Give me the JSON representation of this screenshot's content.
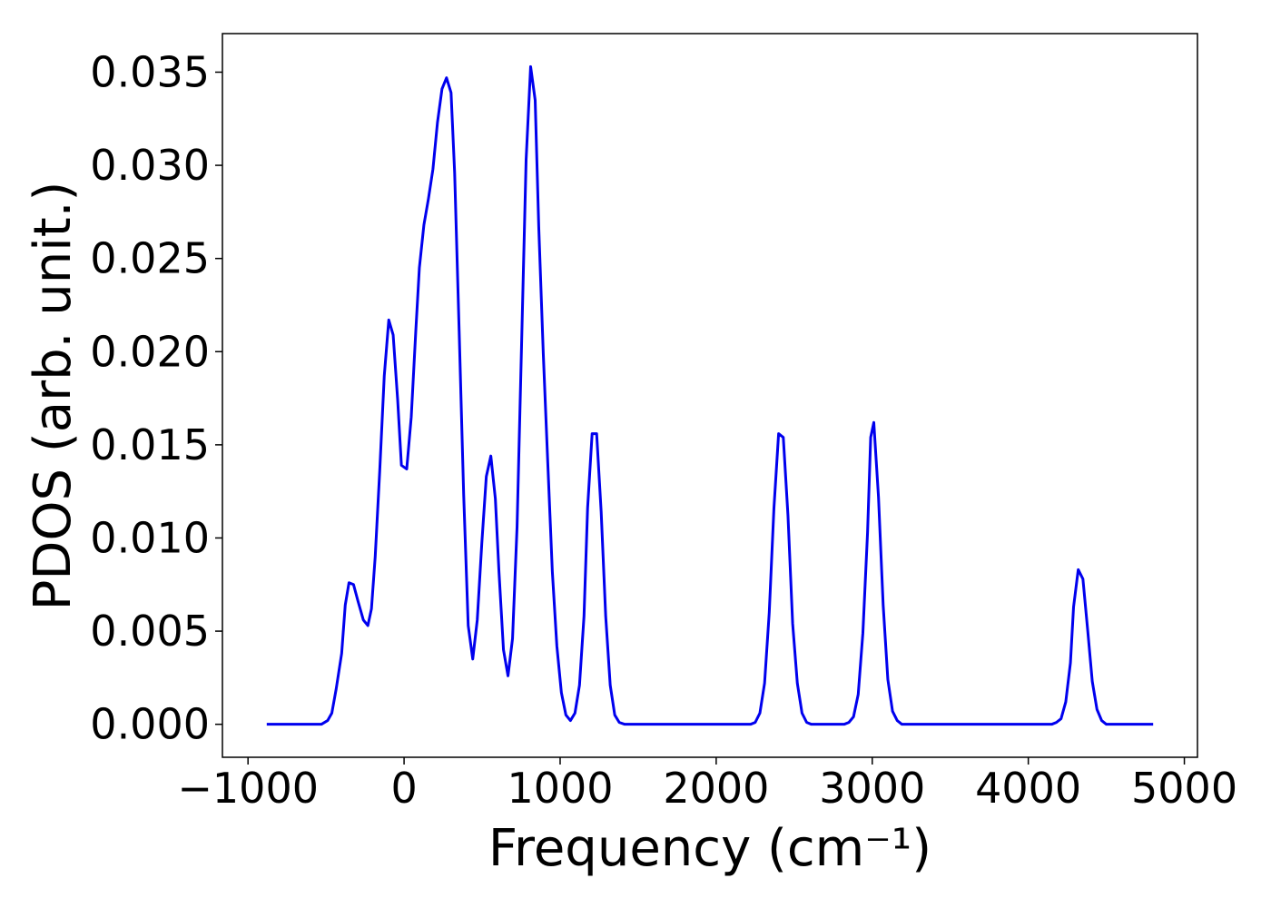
{
  "chart_data": {
    "type": "line",
    "xlabel": "Frequency (cm⁻¹)",
    "ylabel": "PDOS (arb. unit.)",
    "xlim": [
      -1164,
      5084
    ],
    "ylim": [
      -0.00177,
      0.03707
    ],
    "xticks": [
      {
        "value": -1000,
        "label": "−1000"
      },
      0,
      1000,
      2000,
      3000,
      4000,
      5000
    ],
    "yticks": [
      {
        "value": 0,
        "label": "0.000"
      },
      {
        "value": 0.005,
        "label": "0.005"
      },
      {
        "value": 0.01,
        "label": "0.010"
      },
      {
        "value": 0.015,
        "label": "0.015"
      },
      {
        "value": 0.02,
        "label": "0.020"
      },
      {
        "value": 0.025,
        "label": "0.025"
      },
      {
        "value": 0.03,
        "label": "0.030"
      },
      {
        "value": 0.035,
        "label": "0.035"
      }
    ],
    "grid": false,
    "series": [
      {
        "color": "#0000ee",
        "x": [
          -880,
          -530,
          -490,
          -463,
          -435,
          -400,
          -377,
          -353,
          -324,
          -295,
          -261,
          -232,
          -209,
          -185,
          -156,
          -127,
          -98,
          -70,
          -41,
          -17,
          17,
          46,
          75,
          98,
          127,
          156,
          185,
          214,
          243,
          272,
          301,
          324,
          353,
          382,
          411,
          440,
          469,
          498,
          527,
          556,
          585,
          608,
          637,
          666,
          695,
          724,
          753,
          782,
          811,
          840,
          863,
          892,
          921,
          950,
          979,
          1008,
          1037,
          1066,
          1095,
          1124,
          1153,
          1176,
          1205,
          1234,
          1263,
          1292,
          1321,
          1350,
          1379,
          1414,
          2220,
          2250,
          2280,
          2310,
          2340,
          2370,
          2400,
          2430,
          2460,
          2490,
          2520,
          2550,
          2580,
          2610,
          2820,
          2850,
          2880,
          2910,
          2940,
          2970,
          2990,
          3010,
          3040,
          3070,
          3100,
          3130,
          3160,
          3190,
          4150,
          4180,
          4210,
          4240,
          4270,
          4290,
          4320,
          4350,
          4380,
          4410,
          4440,
          4470,
          4500,
          4800
        ],
        "values": [
          0,
          0,
          0.0002,
          0.0006,
          0.0019,
          0.0038,
          0.0064,
          0.0076,
          0.0075,
          0.0066,
          0.0056,
          0.0053,
          0.0062,
          0.009,
          0.0136,
          0.0187,
          0.0217,
          0.0209,
          0.0174,
          0.0139,
          0.0137,
          0.0165,
          0.0211,
          0.0245,
          0.0268,
          0.0282,
          0.0298,
          0.0323,
          0.0341,
          0.0347,
          0.0339,
          0.0296,
          0.0211,
          0.0123,
          0.0053,
          0.0035,
          0.0056,
          0.0097,
          0.0133,
          0.0144,
          0.0121,
          0.0082,
          0.004,
          0.0026,
          0.0046,
          0.0106,
          0.0204,
          0.0303,
          0.0353,
          0.0335,
          0.0267,
          0.0199,
          0.014,
          0.0082,
          0.0042,
          0.0017,
          0.0005,
          0.0002,
          0.0006,
          0.0021,
          0.0058,
          0.0116,
          0.0156,
          0.0156,
          0.0114,
          0.0058,
          0.0021,
          0.0005,
          0.0001,
          0,
          0,
          0.0001,
          0.0006,
          0.0022,
          0.006,
          0.0116,
          0.0156,
          0.0154,
          0.0112,
          0.0054,
          0.0022,
          0.0006,
          0.0001,
          0,
          0,
          0.0001,
          0.0004,
          0.0016,
          0.0049,
          0.0103,
          0.0154,
          0.0162,
          0.0122,
          0.0064,
          0.0024,
          0.0007,
          0.0002,
          0,
          0,
          0.0001,
          0.0003,
          0.0012,
          0.0033,
          0.0063,
          0.0083,
          0.0078,
          0.0051,
          0.0023,
          0.0008,
          0.0002,
          0,
          0
        ]
      }
    ]
  }
}
